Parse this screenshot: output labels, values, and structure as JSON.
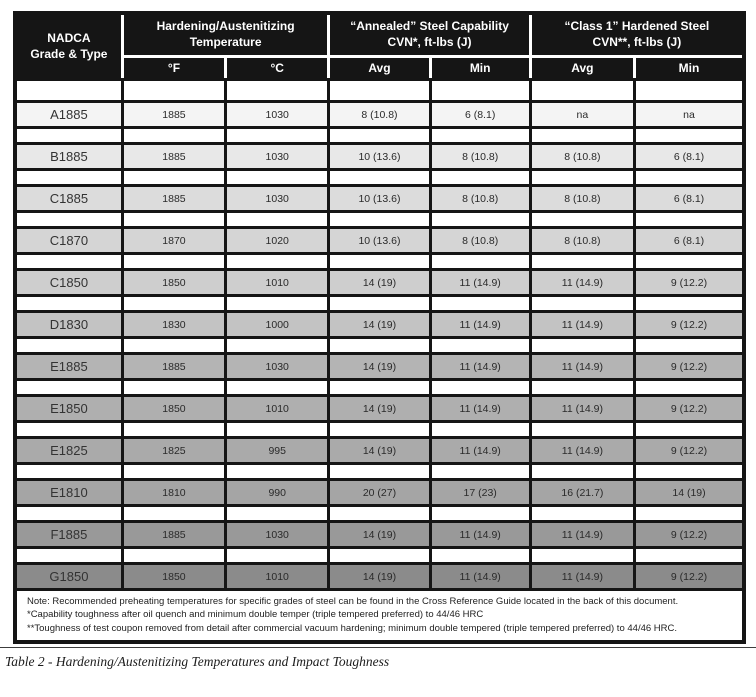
{
  "header": {
    "grade": {
      "line1": "NADCA",
      "line2": "Grade & Type"
    },
    "temp_group": {
      "line1": "Hardening/Austenitizing",
      "line2": "Temperature"
    },
    "annealed_group": {
      "line1": "“Annealed” Steel Capability",
      "line2": "CVN*, ft-lbs (J)"
    },
    "class1_group": {
      "line1": "“Class 1” Hardened Steel",
      "line2": "CVN**, ft-lbs (J)"
    },
    "sub": {
      "f": "°F",
      "c": "°C",
      "ann_avg": "Avg",
      "ann_min": "Min",
      "c1_avg": "Avg",
      "c1_min": "Min"
    }
  },
  "rows": [
    {
      "grade": "A1885",
      "temp_f": "1885",
      "temp_c": "1030",
      "annealed_avg": "8 (10.8)",
      "annealed_min": "6 (8.1)",
      "class1_avg": "na",
      "class1_min": "na",
      "shade": "#f4f4f4"
    },
    {
      "grade": "B1885",
      "temp_f": "1885",
      "temp_c": "1030",
      "annealed_avg": "10 (13.6)",
      "annealed_min": "8 (10.8)",
      "class1_avg": "8 (10.8)",
      "class1_min": "6 (8.1)",
      "shade": "#e8e8e8"
    },
    {
      "grade": "C1885",
      "temp_f": "1885",
      "temp_c": "1030",
      "annealed_avg": "10 (13.6)",
      "annealed_min": "8 (10.8)",
      "class1_avg": "8 (10.8)",
      "class1_min": "6 (8.1)",
      "shade": "#dcdcdc"
    },
    {
      "grade": "C1870",
      "temp_f": "1870",
      "temp_c": "1020",
      "annealed_avg": "10 (13.6)",
      "annealed_min": "8 (10.8)",
      "class1_avg": "8 (10.8)",
      "class1_min": "6 (8.1)",
      "shade": "#d5d5d5"
    },
    {
      "grade": "C1850",
      "temp_f": "1850",
      "temp_c": "1010",
      "annealed_avg": "14 (19)",
      "annealed_min": "11 (14.9)",
      "class1_avg": "11 (14.9)",
      "class1_min": "9 (12.2)",
      "shade": "#cecece"
    },
    {
      "grade": "D1830",
      "temp_f": "1830",
      "temp_c": "1000",
      "annealed_avg": "14 (19)",
      "annealed_min": "11 (14.9)",
      "class1_avg": "11 (14.9)",
      "class1_min": "9 (12.2)",
      "shade": "#c3c3c3"
    },
    {
      "grade": "E1885",
      "temp_f": "1885",
      "temp_c": "1030",
      "annealed_avg": "14 (19)",
      "annealed_min": "11 (14.9)",
      "class1_avg": "11 (14.9)",
      "class1_min": "9 (12.2)",
      "shade": "#b4b4b4"
    },
    {
      "grade": "E1850",
      "temp_f": "1850",
      "temp_c": "1010",
      "annealed_avg": "14 (19)",
      "annealed_min": "11 (14.9)",
      "class1_avg": "11 (14.9)",
      "class1_min": "9 (12.2)",
      "shade": "#afafaf"
    },
    {
      "grade": "E1825",
      "temp_f": "1825",
      "temp_c": "995",
      "annealed_avg": "14 (19)",
      "annealed_min": "11 (14.9)",
      "class1_avg": "11 (14.9)",
      "class1_min": "9 (12.2)",
      "shade": "#aaaaaa"
    },
    {
      "grade": "E1810",
      "temp_f": "1810",
      "temp_c": "990",
      "annealed_avg": "20 (27)",
      "annealed_min": "17 (23)",
      "class1_avg": "16 (21.7)",
      "class1_min": "14 (19)",
      "shade": "#a5a5a5"
    },
    {
      "grade": "F1885",
      "temp_f": "1885",
      "temp_c": "1030",
      "annealed_avg": "14 (19)",
      "annealed_min": "11 (14.9)",
      "class1_avg": "11 (14.9)",
      "class1_min": "9 (12.2)",
      "shade": "#999999"
    },
    {
      "grade": "G1850",
      "temp_f": "1850",
      "temp_c": "1010",
      "annealed_avg": "14 (19)",
      "annealed_min": "11 (14.9)",
      "class1_avg": "11 (14.9)",
      "class1_min": "9 (12.2)",
      "shade": "#8b8b8b"
    }
  ],
  "notes": [
    "Note: Recommended preheating temperatures for specific grades of steel can be found in the Cross Reference Guide located in the back of this document.",
    "*Capability toughness after oil quench and minimum double temper (triple tempered preferred) to 44/46 HRC",
    "**Toughness of test coupon removed from detail after commercial vacuum hardening; minimum double tempered (triple tempered preferred) to 44/46 HRC."
  ],
  "caption": "Table 2 - Hardening/Austenitizing Temperatures and Impact Toughness",
  "colors": {
    "header_bg": "#151515",
    "header_text": "#ffffff",
    "grid_border": "#151515",
    "header_divider": "#ffffff",
    "row_shade_start": "#f4f4f4",
    "row_shade_end": "#8b8b8b"
  }
}
